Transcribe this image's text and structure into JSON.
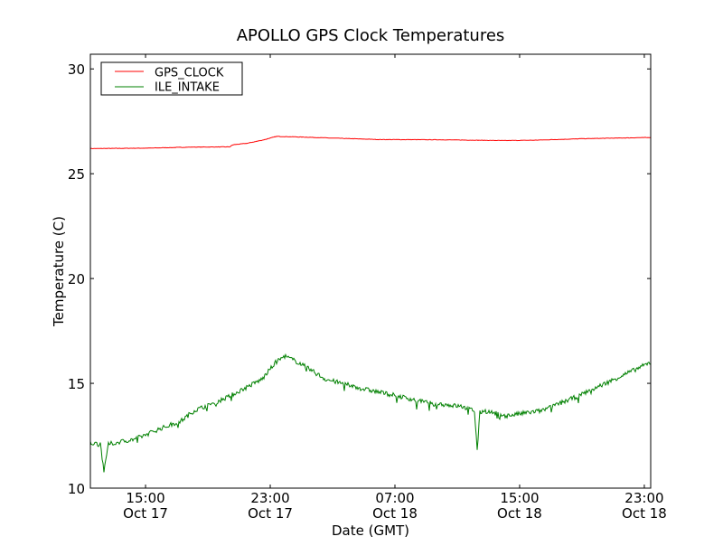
{
  "chart_data": {
    "type": "line",
    "title": "APOLLO GPS Clock Temperatures",
    "xlabel": "Date (GMT)",
    "ylabel": "Temperature (C)",
    "x_units": "hours since Oct 17 00:00 GMT",
    "xlim": [
      11.46,
      47.41
    ],
    "ylim": [
      10,
      30.7
    ],
    "grid": false,
    "legend_position": "top-left",
    "yticks": [
      10,
      15,
      20,
      25,
      30
    ],
    "ytick_labels": [
      "10",
      "15",
      "20",
      "25",
      "30"
    ],
    "xticks": [
      {
        "x": 15,
        "time": "15:00",
        "date": "Oct 17"
      },
      {
        "x": 23,
        "time": "23:00",
        "date": "Oct 17"
      },
      {
        "x": 31,
        "time": "07:00",
        "date": "Oct 18"
      },
      {
        "x": 39,
        "time": "15:00",
        "date": "Oct 18"
      },
      {
        "x": 47,
        "time": "23:00",
        "date": "Oct 18"
      }
    ],
    "series": [
      {
        "name": "GPS_CLOCK",
        "color": "#ff0000",
        "x": [
          11.46,
          15,
          18,
          20.4,
          20.6,
          21.5,
          22.5,
          23.4,
          25,
          27,
          30,
          34,
          38,
          40,
          43,
          47.41
        ],
        "y": [
          26.2,
          26.22,
          26.27,
          26.28,
          26.38,
          26.45,
          26.6,
          26.78,
          26.75,
          26.7,
          26.63,
          26.62,
          26.58,
          26.6,
          26.67,
          26.73
        ]
      },
      {
        "name": "ILE_INTAKE",
        "color": "#008000",
        "x": [
          11.46,
          12.1,
          12.33,
          12.62,
          14.36,
          15.81,
          17.26,
          18.13,
          20.16,
          22.48,
          23.35,
          23.93,
          24.8,
          26.54,
          28.86,
          31.17,
          32.91,
          35.23,
          36.1,
          36.28,
          36.45,
          36.68,
          38.13,
          40.45,
          42.77,
          45.09,
          47.41
        ],
        "y": [
          12.15,
          12.1,
          10.8,
          12.1,
          12.35,
          12.8,
          13.2,
          13.7,
          14.3,
          15.2,
          16.0,
          16.3,
          16.0,
          15.2,
          14.75,
          14.4,
          14.1,
          13.9,
          13.7,
          11.8,
          13.6,
          13.7,
          13.45,
          13.7,
          14.4,
          15.2,
          16.0
        ]
      }
    ]
  }
}
